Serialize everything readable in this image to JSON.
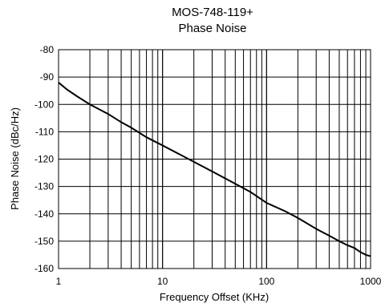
{
  "chart_data": {
    "type": "line",
    "title": [
      "MOS-748-119+",
      "Phase Noise"
    ],
    "xlabel": "Frequency Offset (KHz)",
    "ylabel": "Phase Noise (dBc/Hz)",
    "x_scale": "log",
    "xlim": [
      1,
      1000
    ],
    "ylim": [
      -160,
      -80
    ],
    "x_ticks": [
      1,
      10,
      100,
      1000
    ],
    "x_tick_labels": [
      "1",
      "10",
      "100",
      "1000"
    ],
    "y_ticks": [
      -80,
      -90,
      -100,
      -110,
      -120,
      -130,
      -140,
      -150,
      -160
    ],
    "y_tick_labels": [
      "-80",
      "-90",
      "-100",
      "-110",
      "-120",
      "-130",
      "-140",
      "-150",
      "-160"
    ],
    "grid": true,
    "line_color": "#000000",
    "series": [
      {
        "x": [
          1,
          1.2,
          1.5,
          2,
          3,
          4,
          5,
          7,
          10,
          15,
          20,
          30,
          50,
          70,
          100,
          150,
          200,
          300,
          400,
          500,
          600,
          700,
          800,
          900,
          1000
        ],
        "y": [
          -92,
          -94.5,
          -97,
          -100,
          -103.5,
          -106.5,
          -108.5,
          -112,
          -115,
          -118.5,
          -121,
          -124.5,
          -129,
          -132,
          -136,
          -139,
          -141.5,
          -145.5,
          -148,
          -150,
          -151.5,
          -152.5,
          -154,
          -155,
          -155.5
        ]
      }
    ]
  }
}
